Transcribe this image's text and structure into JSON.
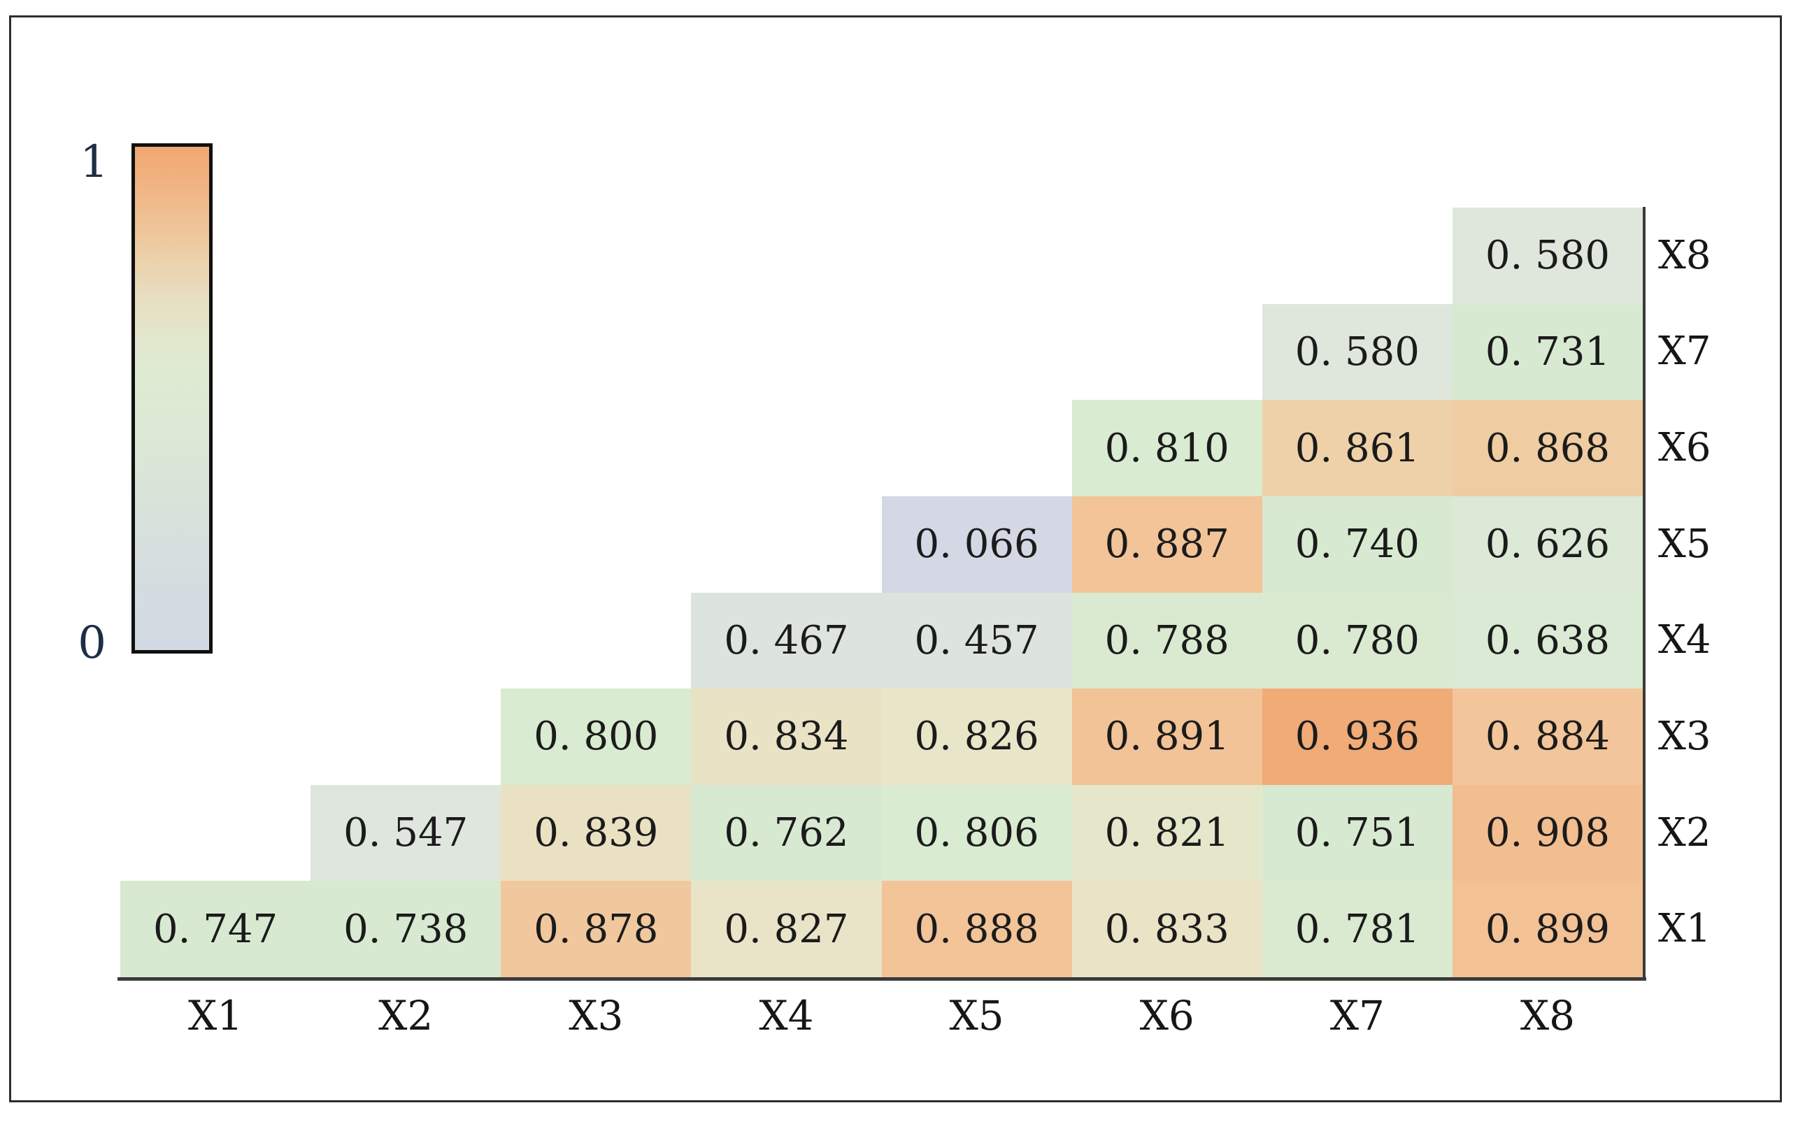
{
  "colorbar": {
    "top_label": "1",
    "bottom_label": "0",
    "gradient_stops": [
      {
        "v": 0.0,
        "color": "#d3d9e3"
      },
      {
        "v": 0.12,
        "color": "#d5dce1"
      },
      {
        "v": 0.22,
        "color": "#d7dfdc"
      },
      {
        "v": 0.32,
        "color": "#d9e4d9"
      },
      {
        "v": 0.45,
        "color": "#dcead5"
      },
      {
        "v": 0.55,
        "color": "#deebd2"
      },
      {
        "v": 0.62,
        "color": "#e2e7cd"
      },
      {
        "v": 0.7,
        "color": "#e7dec0"
      },
      {
        "v": 0.78,
        "color": "#ecd0aa"
      },
      {
        "v": 0.88,
        "color": "#f0bc8d"
      },
      {
        "v": 1.0,
        "color": "#f1a771"
      }
    ]
  },
  "chart_data": {
    "type": "heatmap",
    "title": "",
    "xlabel": "",
    "ylabel": "",
    "value_range": [
      0,
      1
    ],
    "legend_position": "top-left",
    "x_categories": [
      "X1",
      "X2",
      "X3",
      "X4",
      "X5",
      "X6",
      "X7",
      "X8"
    ],
    "y_categories_top_to_bottom": [
      "X8",
      "X7",
      "X6",
      "X5",
      "X4",
      "X3",
      "X2",
      "X1"
    ],
    "rows": [
      {
        "label": "X8",
        "cells": [
          {
            "col": "X8",
            "value": 0.58
          }
        ]
      },
      {
        "label": "X7",
        "cells": [
          {
            "col": "X7",
            "value": 0.58
          },
          {
            "col": "X8",
            "value": 0.731
          }
        ]
      },
      {
        "label": "X6",
        "cells": [
          {
            "col": "X6",
            "value": 0.81
          },
          {
            "col": "X7",
            "value": 0.861
          },
          {
            "col": "X8",
            "value": 0.868
          }
        ]
      },
      {
        "label": "X5",
        "cells": [
          {
            "col": "X5",
            "value": 0.066
          },
          {
            "col": "X6",
            "value": 0.887
          },
          {
            "col": "X7",
            "value": 0.74
          },
          {
            "col": "X8",
            "value": 0.626
          }
        ]
      },
      {
        "label": "X4",
        "cells": [
          {
            "col": "X4",
            "value": 0.467
          },
          {
            "col": "X5",
            "value": 0.457
          },
          {
            "col": "X6",
            "value": 0.788
          },
          {
            "col": "X7",
            "value": 0.78
          },
          {
            "col": "X8",
            "value": 0.638
          }
        ]
      },
      {
        "label": "X3",
        "cells": [
          {
            "col": "X3",
            "value": 0.8
          },
          {
            "col": "X4",
            "value": 0.834
          },
          {
            "col": "X5",
            "value": 0.826
          },
          {
            "col": "X6",
            "value": 0.891
          },
          {
            "col": "X7",
            "value": 0.936
          },
          {
            "col": "X8",
            "value": 0.884
          }
        ]
      },
      {
        "label": "X2",
        "cells": [
          {
            "col": "X2",
            "value": 0.547
          },
          {
            "col": "X3",
            "value": 0.839
          },
          {
            "col": "X4",
            "value": 0.762
          },
          {
            "col": "X5",
            "value": 0.806
          },
          {
            "col": "X6",
            "value": 0.821
          },
          {
            "col": "X7",
            "value": 0.751
          },
          {
            "col": "X8",
            "value": 0.908
          }
        ]
      },
      {
        "label": "X1",
        "cells": [
          {
            "col": "X1",
            "value": 0.747
          },
          {
            "col": "X2",
            "value": 0.738
          },
          {
            "col": "X3",
            "value": 0.878
          },
          {
            "col": "X4",
            "value": 0.827
          },
          {
            "col": "X5",
            "value": 0.888
          },
          {
            "col": "X6",
            "value": 0.833
          },
          {
            "col": "X7",
            "value": 0.781
          },
          {
            "col": "X8",
            "value": 0.899
          }
        ]
      }
    ],
    "cell_colormap_stops": [
      {
        "v": 0.0,
        "color": "#d2d7e4"
      },
      {
        "v": 0.07,
        "color": "#d3d8e4"
      },
      {
        "v": 0.46,
        "color": "#dde4de"
      },
      {
        "v": 0.58,
        "color": "#dfe7dc"
      },
      {
        "v": 0.64,
        "color": "#daead4"
      },
      {
        "v": 0.75,
        "color": "#d8e9d1"
      },
      {
        "v": 0.81,
        "color": "#d9ebd0"
      },
      {
        "v": 0.825,
        "color": "#e9e5c9"
      },
      {
        "v": 0.845,
        "color": "#ebdfc0"
      },
      {
        "v": 0.865,
        "color": "#f0cda3"
      },
      {
        "v": 0.89,
        "color": "#f2c397"
      },
      {
        "v": 0.905,
        "color": "#f2bf92"
      },
      {
        "v": 0.94,
        "color": "#f0a873"
      },
      {
        "v": 1.0,
        "color": "#ee9a5e"
      }
    ],
    "colors": {
      "frame_border": "#2e2e2e",
      "axis_line": "#3b3b3b",
      "cell_text": "#1b1b1b",
      "axis_label_text": "#161616",
      "colorbar_label_text": "#1c2e44",
      "colorbar_border": "#101010",
      "background": "#ffffff"
    }
  }
}
